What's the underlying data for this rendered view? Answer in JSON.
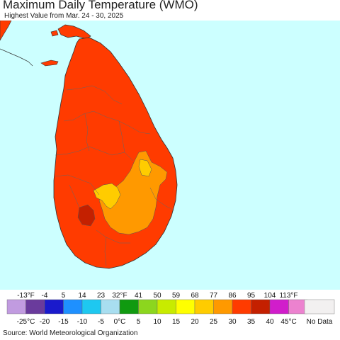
{
  "title": "Maximum Daily Temperature (WMO)",
  "subtitle": "Highest Value from Mar. 24 - 30, 2025",
  "source": "Source: World Meteorological Organization",
  "map": {
    "region": "Sri Lanka",
    "ocean_color": "#ccffff",
    "zones": [
      {
        "name": "30-35 °C",
        "color": "#ff3b00"
      },
      {
        "name": "25-30 °C",
        "color": "#ff9900"
      },
      {
        "name": "20-25 °C",
        "color": "#ffcc00"
      },
      {
        "name": "35-40 °C",
        "color": "#c42000"
      }
    ]
  },
  "legend": {
    "fahrenheit_labels": [
      "-13°F",
      "-4",
      "5",
      "14",
      "23",
      "32°F",
      "41",
      "50",
      "59",
      "68",
      "77",
      "86",
      "95",
      "104",
      "113°F"
    ],
    "celsius_labels": [
      "-25°C",
      "-20",
      "-15",
      "-10",
      "-5",
      "0°C",
      "5",
      "10",
      "15",
      "20",
      "25",
      "30",
      "35",
      "40",
      "45°C"
    ],
    "colors": [
      "#c19be0",
      "#6a3b9c",
      "#1a1acc",
      "#1e90ff",
      "#1ec8f0",
      "#a8def0",
      "#109a10",
      "#8cd61e",
      "#c8eb00",
      "#ffff00",
      "#ffcc00",
      "#ff9900",
      "#ff3b00",
      "#c42000",
      "#d11dcb",
      "#ec82cf"
    ],
    "no_data_label": "No Data",
    "no_data_color": "#f2f0f0"
  }
}
